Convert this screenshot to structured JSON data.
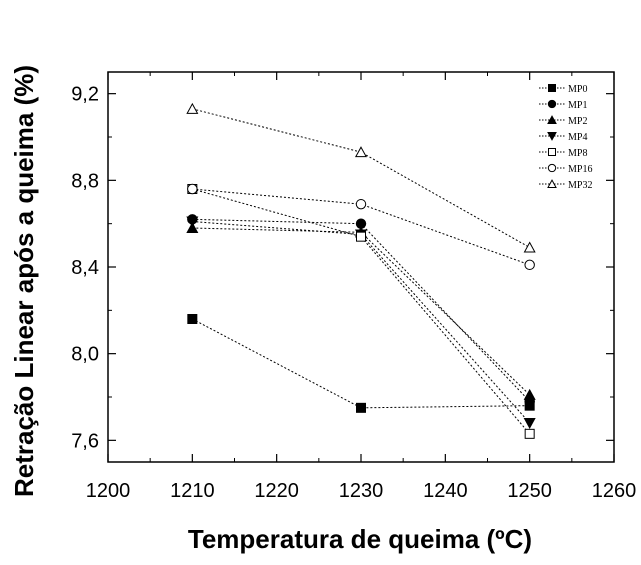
{
  "chart_data": {
    "type": "line",
    "title": "",
    "xlabel": "Temperatura de queima (ºC)",
    "ylabel": "Retração Linear após a queima (%)",
    "xlim": [
      1200,
      1260
    ],
    "ylim": [
      7.5,
      9.3
    ],
    "x_ticks": [
      1200,
      1210,
      1220,
      1230,
      1240,
      1250,
      1260
    ],
    "y_ticks": [
      "7,6",
      "8,0",
      "8,4",
      "8,8",
      "9,2"
    ],
    "y_tick_values": [
      7.6,
      8.0,
      8.4,
      8.8,
      9.2
    ],
    "x": [
      1210,
      1230,
      1250
    ],
    "grid": false,
    "legend_position": "top-right",
    "series": [
      {
        "name": "MP0",
        "marker": "square-filled",
        "values": [
          8.16,
          7.75,
          7.76
        ]
      },
      {
        "name": "MP1",
        "marker": "circle-filled",
        "values": [
          8.62,
          8.6,
          7.78
        ]
      },
      {
        "name": "MP2",
        "marker": "triangle-filled",
        "values": [
          8.58,
          8.56,
          7.81
        ]
      },
      {
        "name": "MP4",
        "marker": "triangle-down-filled",
        "values": [
          8.61,
          8.55,
          7.68
        ]
      },
      {
        "name": "MP8",
        "marker": "square-open",
        "values": [
          8.76,
          8.54,
          7.63
        ]
      },
      {
        "name": "MP16",
        "marker": "circle-open",
        "values": [
          8.76,
          8.69,
          8.41
        ]
      },
      {
        "name": "MP32",
        "marker": "triangle-open",
        "values": [
          9.13,
          8.93,
          8.49
        ]
      }
    ]
  }
}
